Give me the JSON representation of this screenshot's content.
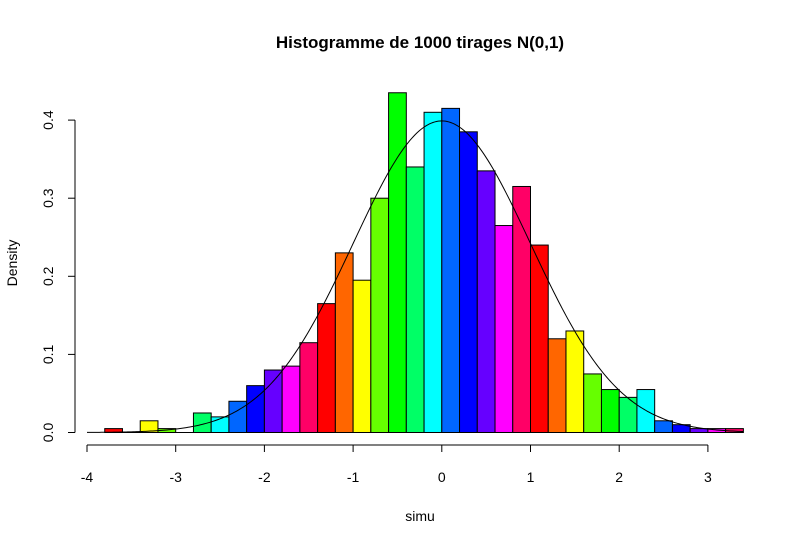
{
  "chart_data": {
    "type": "bar",
    "title": "Histogramme de 1000 tirages N(0,1)",
    "xlabel": "simu",
    "ylabel": "Density",
    "xlim": [
      -4,
      3.4
    ],
    "ylim": [
      0,
      0.44
    ],
    "x_ticks": [
      -4,
      -3,
      -2,
      -1,
      0,
      1,
      2,
      3
    ],
    "y_ticks": [
      0.0,
      0.1,
      0.2,
      0.3,
      0.4
    ],
    "y_tick_labels": [
      "0.0",
      "0.1",
      "0.2",
      "0.3",
      "0.4"
    ],
    "bin_width": 0.2,
    "bin_start": -3.8,
    "densities": [
      0.005,
      0.0,
      0.015,
      0.005,
      0.0,
      0.025,
      0.02,
      0.04,
      0.06,
      0.08,
      0.085,
      0.115,
      0.165,
      0.23,
      0.195,
      0.3,
      0.435,
      0.34,
      0.41,
      0.415,
      0.385,
      0.335,
      0.265,
      0.315,
      0.24,
      0.12,
      0.13,
      0.075,
      0.055,
      0.045,
      0.055,
      0.015,
      0.01,
      0.005,
      0.005,
      0.005
    ],
    "bar_colors": [
      "#FF0000",
      "#FF6600",
      "#FFFF00",
      "#66FF00",
      "#00FF00",
      "#00FF66",
      "#00FFFF",
      "#0066FF",
      "#0000FF",
      "#6600FF",
      "#FF00FF",
      "#FF0066"
    ],
    "curve": "normal density N(0,1)",
    "curve_color": "#000000"
  }
}
